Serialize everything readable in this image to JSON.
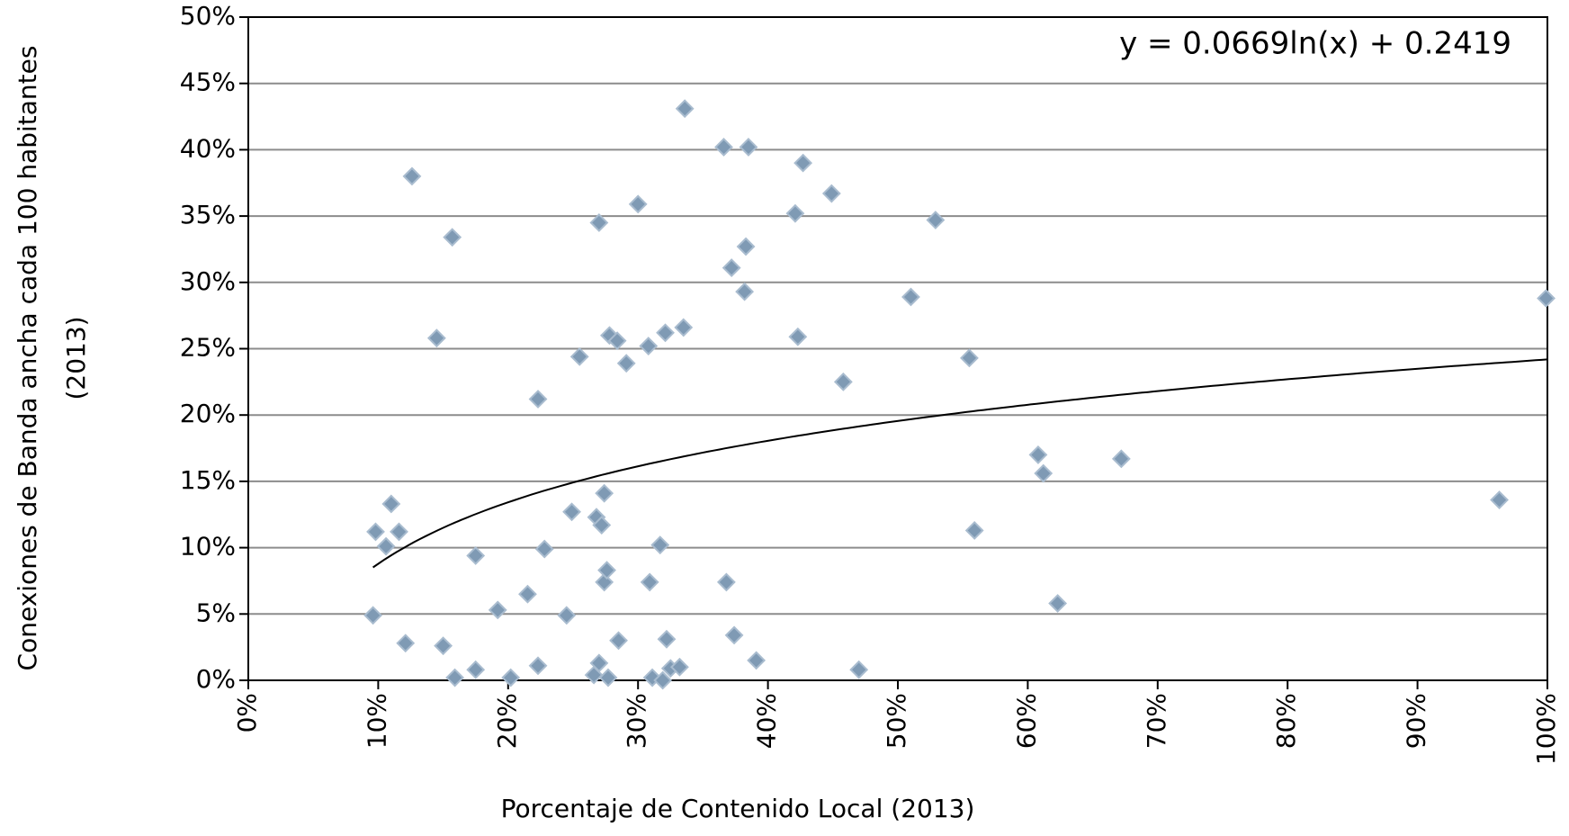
{
  "chart_data": {
    "type": "scatter",
    "xlabel": "Porcentaje de Contenido Local (2013)",
    "ylabel": [
      "Conexiones de Banda ancha cada 100 habitantes",
      "(2013)"
    ],
    "color": "#7f9ab4",
    "grid": true,
    "xlim": [
      0,
      100
    ],
    "xticks": [
      {
        "value": 0,
        "label": "0%"
      },
      {
        "value": 10,
        "label": "10%"
      },
      {
        "value": 20,
        "label": "20%"
      },
      {
        "value": 30,
        "label": "30%"
      },
      {
        "value": 40,
        "label": "40%"
      },
      {
        "value": 50,
        "label": "50%"
      },
      {
        "value": 60,
        "label": "60%"
      },
      {
        "value": 70,
        "label": "70%"
      },
      {
        "value": 80,
        "label": "80%"
      },
      {
        "value": 90,
        "label": "90%"
      },
      {
        "value": 100,
        "label": "100%"
      }
    ],
    "ylim": [
      0,
      50
    ],
    "yticks": [
      {
        "value": 0,
        "label": "0%"
      },
      {
        "value": 5,
        "label": "5%"
      },
      {
        "value": 10,
        "label": "10%"
      },
      {
        "value": 15,
        "label": "15%"
      },
      {
        "value": 20,
        "label": "20%"
      },
      {
        "value": 25,
        "label": "25%"
      },
      {
        "value": 30,
        "label": "30%"
      },
      {
        "value": 35,
        "label": "35%"
      },
      {
        "value": 40,
        "label": "40%"
      },
      {
        "value": 45,
        "label": "45%"
      },
      {
        "value": 50,
        "label": "50%"
      }
    ],
    "trendline": {
      "label": "y = 0.0669ln(x) + 0.2419",
      "a": 0.0669,
      "b": 0.2419
    },
    "x": [
      9.6,
      9.8,
      10.6,
      11.0,
      11.6,
      12.1,
      12.6,
      14.5,
      15.0,
      15.7,
      15.9,
      17.5,
      17.5,
      19.2,
      20.2,
      21.5,
      22.3,
      22.3,
      22.8,
      24.5,
      24.9,
      25.5,
      26.6,
      26.8,
      27.0,
      27.0,
      27.2,
      27.4,
      27.4,
      27.6,
      27.7,
      27.8,
      28.4,
      28.5,
      29.1,
      30.0,
      30.8,
      30.9,
      31.1,
      31.7,
      31.9,
      32.1,
      32.2,
      32.5,
      33.2,
      33.5,
      33.6,
      36.6,
      36.8,
      37.2,
      37.4,
      38.2,
      38.3,
      38.5,
      39.1,
      42.1,
      42.3,
      42.7,
      44.9,
      45.8,
      47.0,
      51.0,
      52.9,
      55.5,
      55.9,
      60.8,
      61.2,
      62.3,
      67.2,
      96.3,
      99.9
    ],
    "values": [
      4.9,
      11.2,
      10.1,
      13.3,
      11.2,
      2.8,
      38.0,
      25.8,
      2.6,
      33.4,
      0.2,
      9.4,
      0.8,
      5.3,
      0.2,
      6.5,
      21.2,
      1.1,
      9.9,
      4.9,
      12.7,
      24.4,
      0.4,
      12.3,
      34.5,
      1.3,
      11.7,
      14.1,
      7.4,
      8.3,
      0.2,
      26.0,
      25.6,
      3.0,
      23.9,
      35.9,
      25.2,
      7.4,
      0.2,
      10.2,
      0.0,
      26.2,
      3.1,
      0.9,
      1.0,
      26.6,
      43.1,
      40.2,
      7.4,
      31.1,
      3.4,
      29.3,
      32.7,
      40.2,
      1.5,
      35.2,
      25.9,
      39.0,
      36.7,
      22.5,
      0.8,
      28.9,
      34.7,
      24.3,
      11.3,
      17.0,
      15.6,
      5.8,
      16.7,
      13.6,
      28.8
    ]
  }
}
